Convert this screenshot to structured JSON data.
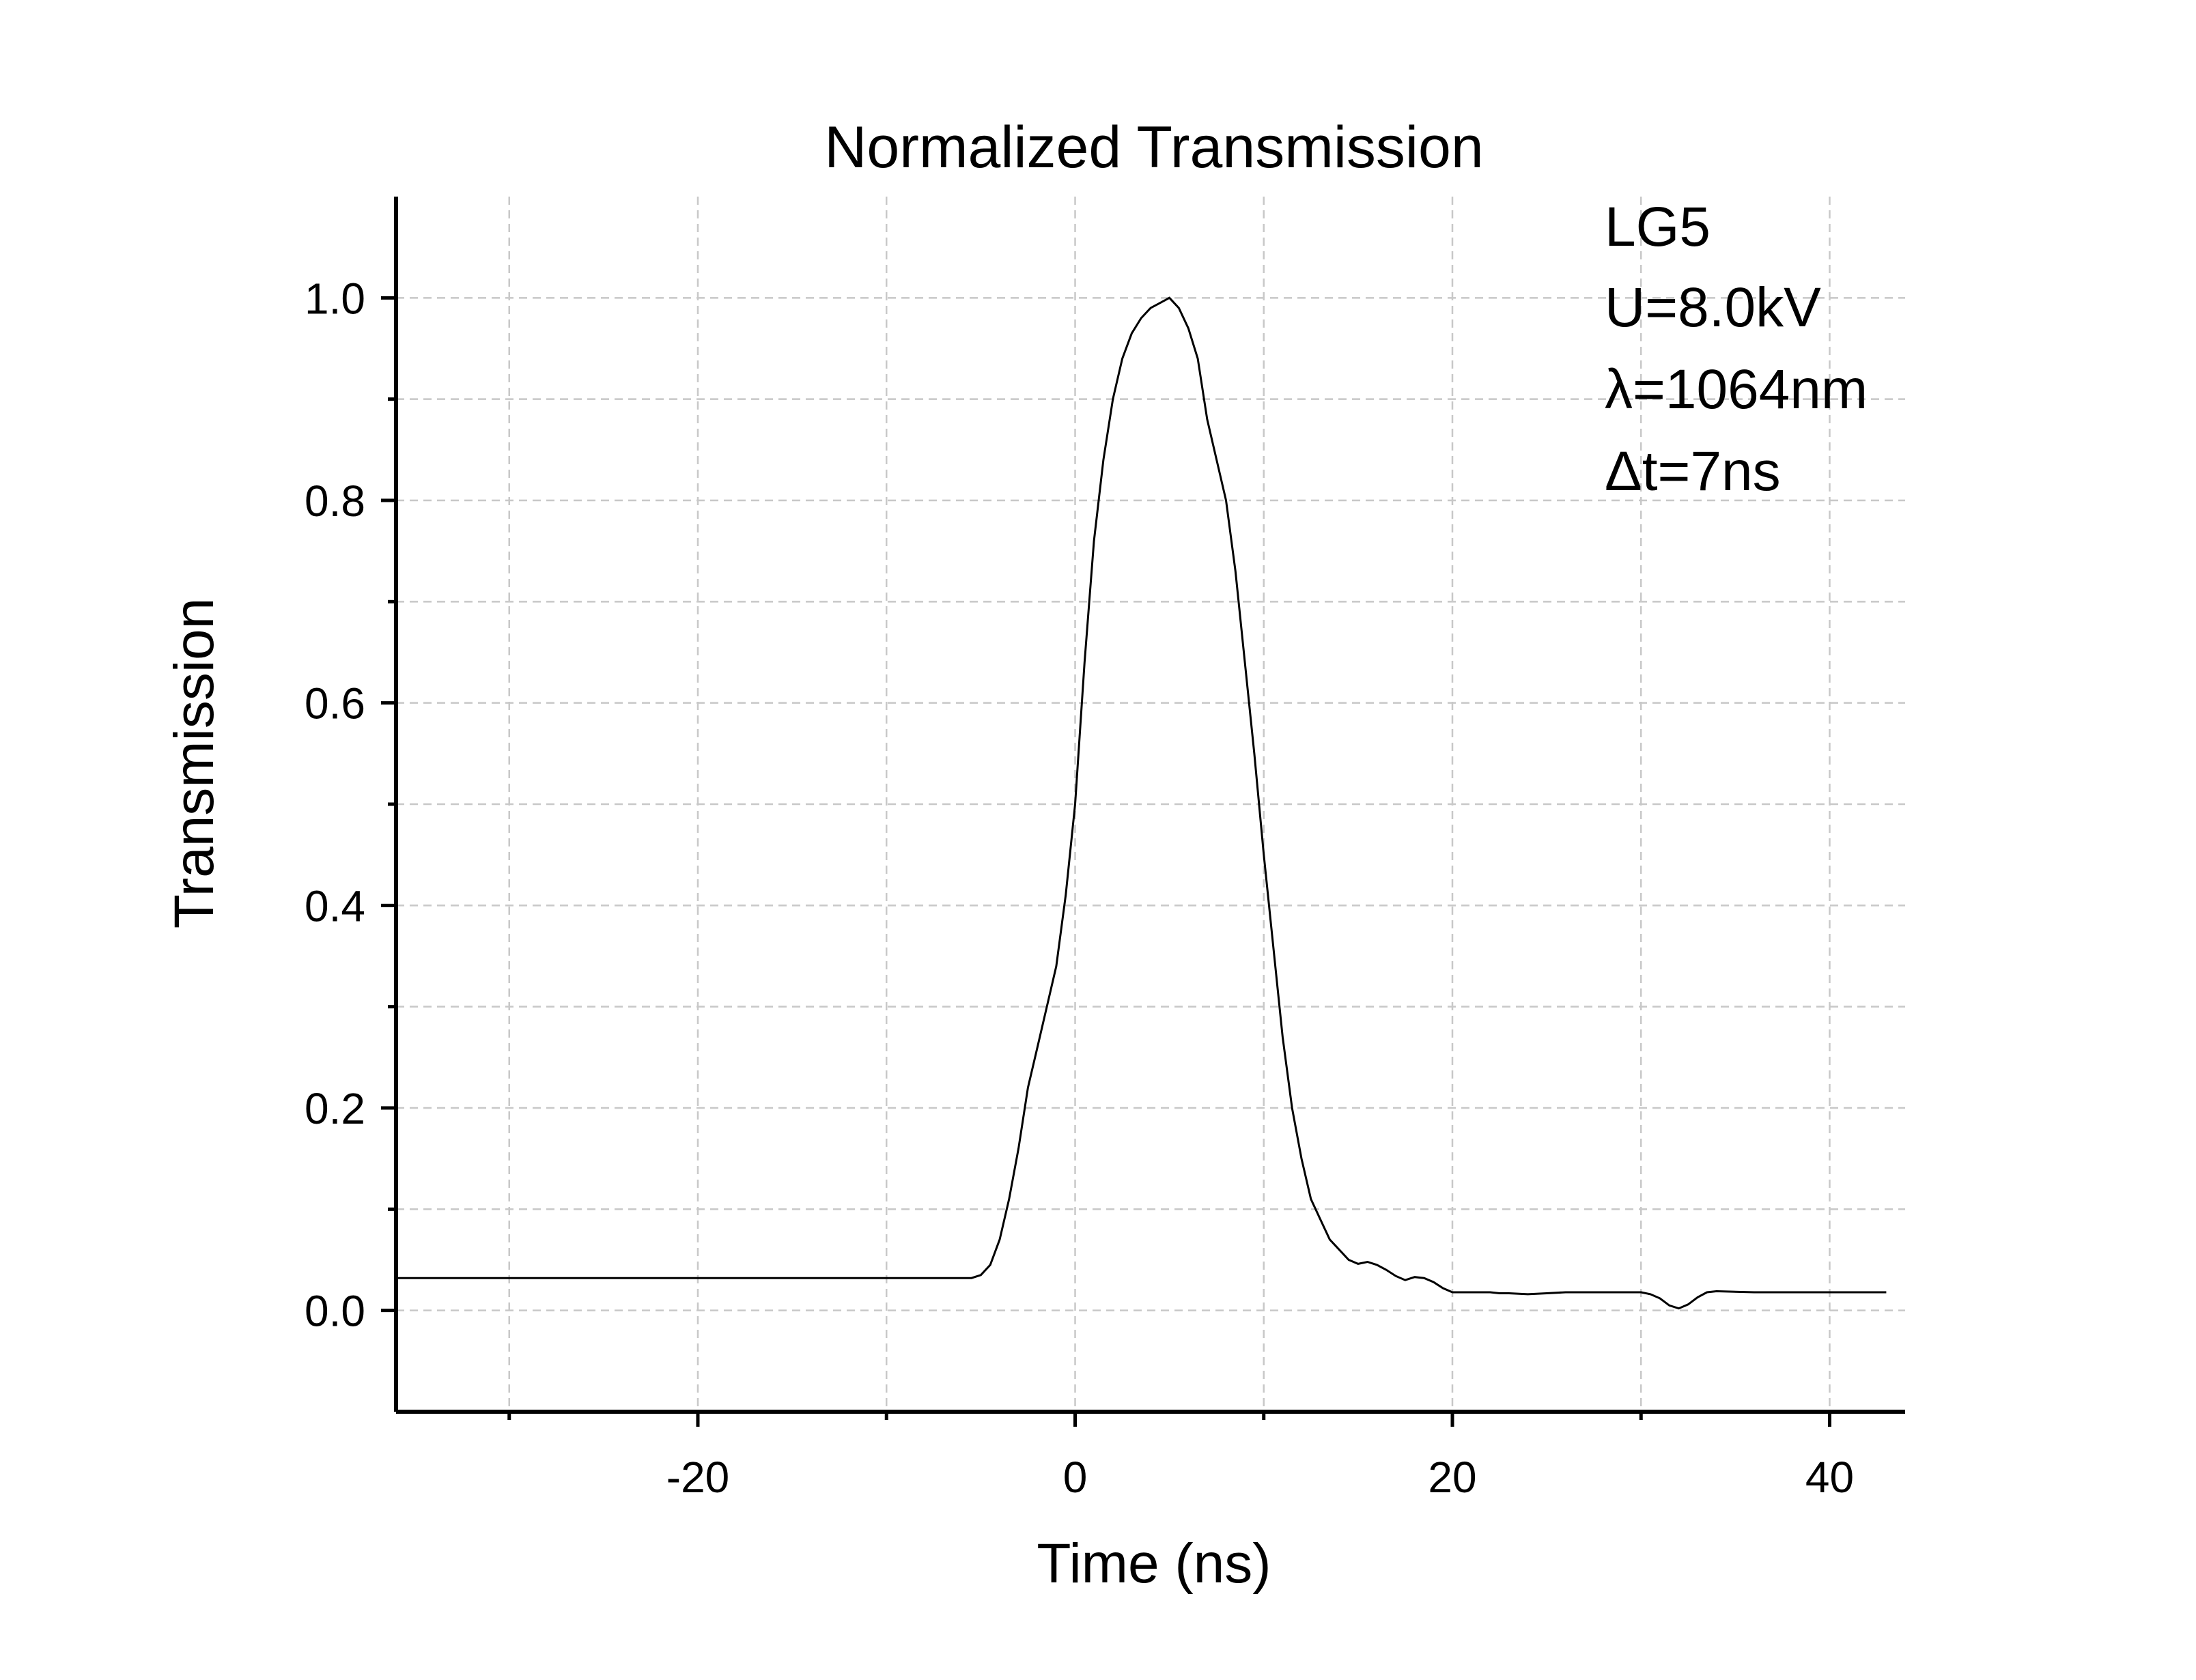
{
  "chart_data": {
    "type": "line",
    "title": "Normalized Transmission",
    "xlabel": "Time (ns)",
    "ylabel": "Transmission",
    "xlim": [
      -36,
      44
    ],
    "ylim": [
      -0.1,
      1.1
    ],
    "grid": true,
    "x_ticks": [
      -20,
      0,
      20,
      40
    ],
    "x_tick_labels": [
      "-20",
      "0",
      "20",
      "40"
    ],
    "x_minor_ticks": [
      -30,
      -10,
      10,
      30
    ],
    "y_ticks": [
      0.0,
      0.2,
      0.4,
      0.6,
      0.8,
      1.0
    ],
    "y_tick_labels": [
      "0.0",
      "0.2",
      "0.4",
      "0.6",
      "0.8",
      "1.0"
    ],
    "y_minor_ticks": [
      0.1,
      0.3,
      0.5,
      0.7,
      0.9
    ],
    "annotations": [
      "LG5",
      "U=8.0kV",
      "λ=1064nm",
      "Δt=7ns"
    ],
    "series": [
      {
        "color": "#000000",
        "x": [
          -36,
          -6,
          -5.5,
          -5,
          -4.5,
          -4,
          -3.5,
          -3,
          -2.5,
          -2,
          -1.5,
          -1,
          -0.5,
          0,
          0.5,
          1,
          1.5,
          2,
          2.5,
          3,
          3.5,
          4,
          4.5,
          5,
          5.5,
          6,
          6.5,
          7,
          7.5,
          8,
          8.5,
          9,
          9.5,
          10,
          10.5,
          11,
          11.5,
          12,
          12.5,
          13,
          13.5,
          14,
          14.5,
          15,
          15.5,
          16,
          16.5,
          17,
          17.5,
          18,
          18.5,
          19,
          19.5,
          20,
          20.5,
          21,
          21.5,
          22,
          22.5,
          23,
          24,
          25,
          26,
          27,
          28,
          29,
          30,
          30.5,
          31,
          31.5,
          32,
          32.5,
          33,
          33.5,
          34,
          36,
          38,
          40,
          43
        ],
        "y": [
          0.032,
          0.032,
          0.032,
          0.035,
          0.045,
          0.07,
          0.11,
          0.16,
          0.22,
          0.26,
          0.3,
          0.34,
          0.41,
          0.5,
          0.64,
          0.76,
          0.84,
          0.9,
          0.94,
          0.965,
          0.98,
          0.99,
          0.995,
          1.0,
          0.99,
          0.97,
          0.94,
          0.88,
          0.84,
          0.8,
          0.73,
          0.64,
          0.55,
          0.45,
          0.36,
          0.27,
          0.2,
          0.15,
          0.11,
          0.09,
          0.07,
          0.06,
          0.05,
          0.046,
          0.048,
          0.045,
          0.04,
          0.034,
          0.03,
          0.033,
          0.032,
          0.028,
          0.022,
          0.018,
          0.018,
          0.018,
          0.018,
          0.018,
          0.017,
          0.017,
          0.016,
          0.017,
          0.018,
          0.018,
          0.018,
          0.018,
          0.018,
          0.016,
          0.012,
          0.005,
          0.002,
          0.006,
          0.013,
          0.018,
          0.019,
          0.018,
          0.018,
          0.018,
          0.018
        ]
      }
    ]
  }
}
